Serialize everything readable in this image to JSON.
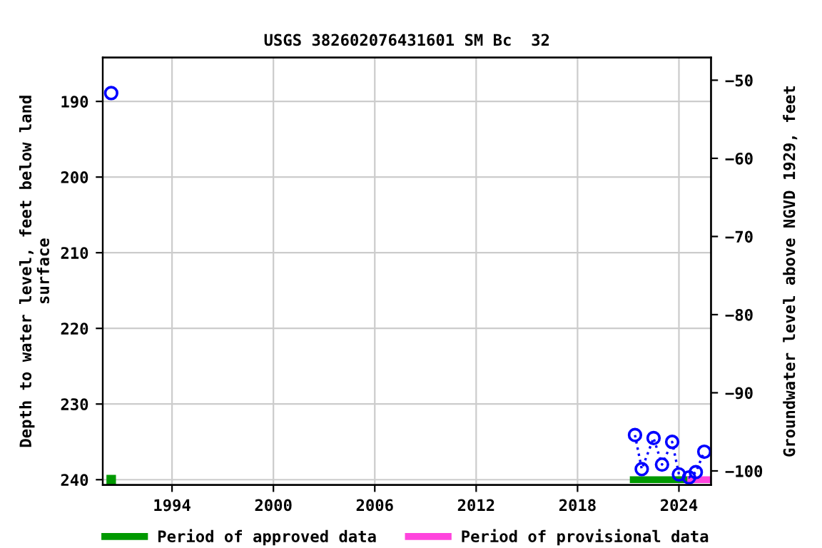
{
  "chart_data": {
    "type": "line",
    "title": "USGS 382602076431601 SM Bc  32",
    "ylabel": "Depth to water level, feet below land\nsurface",
    "y2label": "Groundwater level above NGVD 1929, feet",
    "xlim": [
      1989.9,
      2025.9
    ],
    "xticks": [
      1994,
      2000,
      2006,
      2012,
      2018,
      2024
    ],
    "ylim": [
      240.7,
      184.2
    ],
    "yticks": [
      190,
      200,
      210,
      220,
      230,
      240
    ],
    "y2lim": [
      -101.8,
      -47.1
    ],
    "y2ticks": [
      -50,
      -60,
      -70,
      -80,
      -90,
      -100
    ],
    "grid": true,
    "legend": "bottom",
    "series": [
      {
        "color": "#0000ff",
        "marker": "circle",
        "line_style": "dotted",
        "x": [
          1990.4,
          2000,
          2021.4,
          2021.8,
          2022.5,
          2023.0,
          2023.6,
          2024.0,
          2024.6,
          2025.0,
          2025.5
        ],
        "values": [
          188.9,
          null,
          234.1,
          238.6,
          234.5,
          238.0,
          235.0,
          239.3,
          239.7,
          239.0,
          236.3
        ]
      },
      {
        "type": "scatter",
        "color": "#009900",
        "marker": "square",
        "x": [
          1990.4
        ],
        "values": [
          240
        ]
      },
      {
        "name": "Period of approved data",
        "color": "#009900",
        "line_style": "solid",
        "x": [
          2021.3,
          2024.7
        ],
        "values": [
          240,
          240
        ]
      },
      {
        "name": "Period of provisional data",
        "color": "#ff44dd",
        "line_style": "solid",
        "x": [
          2024.7,
          2025.7
        ],
        "values": [
          240,
          240
        ]
      }
    ]
  }
}
